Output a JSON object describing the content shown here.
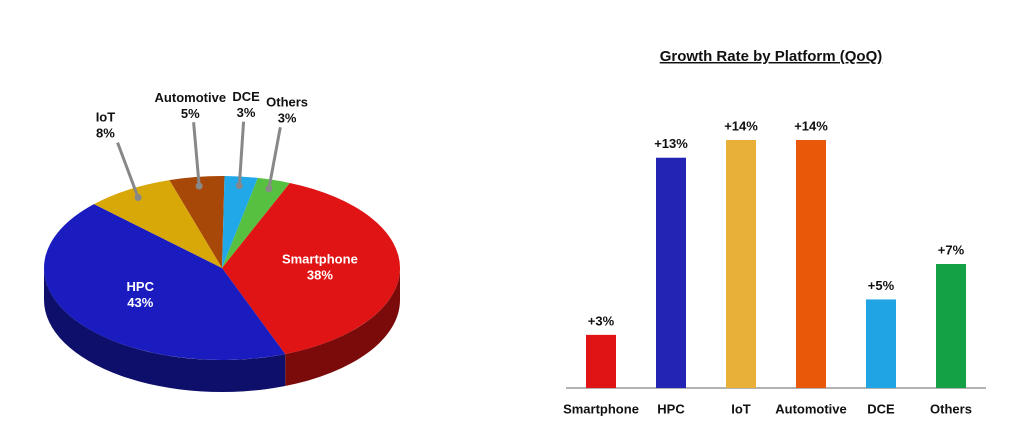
{
  "chart_data": [
    {
      "type": "pie",
      "categories": [
        "Automotive",
        "DCE",
        "Others",
        "Smartphone",
        "HPC",
        "IoT"
      ],
      "values": [
        5,
        3,
        3,
        38,
        43,
        8
      ],
      "value_labels": [
        "5%",
        "3%",
        "3%",
        "38%",
        "43%",
        "8%"
      ],
      "colors": [
        "#a84808",
        "#20a8e8",
        "#58c040",
        "#e01414",
        "#1a1cc0",
        "#d8a808"
      ]
    },
    {
      "type": "bar",
      "title": "Growth Rate by Platform (QoQ)",
      "categories": [
        "Smartphone",
        "HPC",
        "IoT",
        "Automotive",
        "DCE",
        "Others"
      ],
      "values": [
        3,
        13,
        14,
        14,
        5,
        7
      ],
      "value_labels": [
        "+3%",
        "+13%",
        "+14%",
        "+14%",
        "+5%",
        "+7%"
      ],
      "colors": [
        "#e01414",
        "#2424b4",
        "#e8b038",
        "#e85808",
        "#20a4e4",
        "#14a044"
      ]
    }
  ]
}
